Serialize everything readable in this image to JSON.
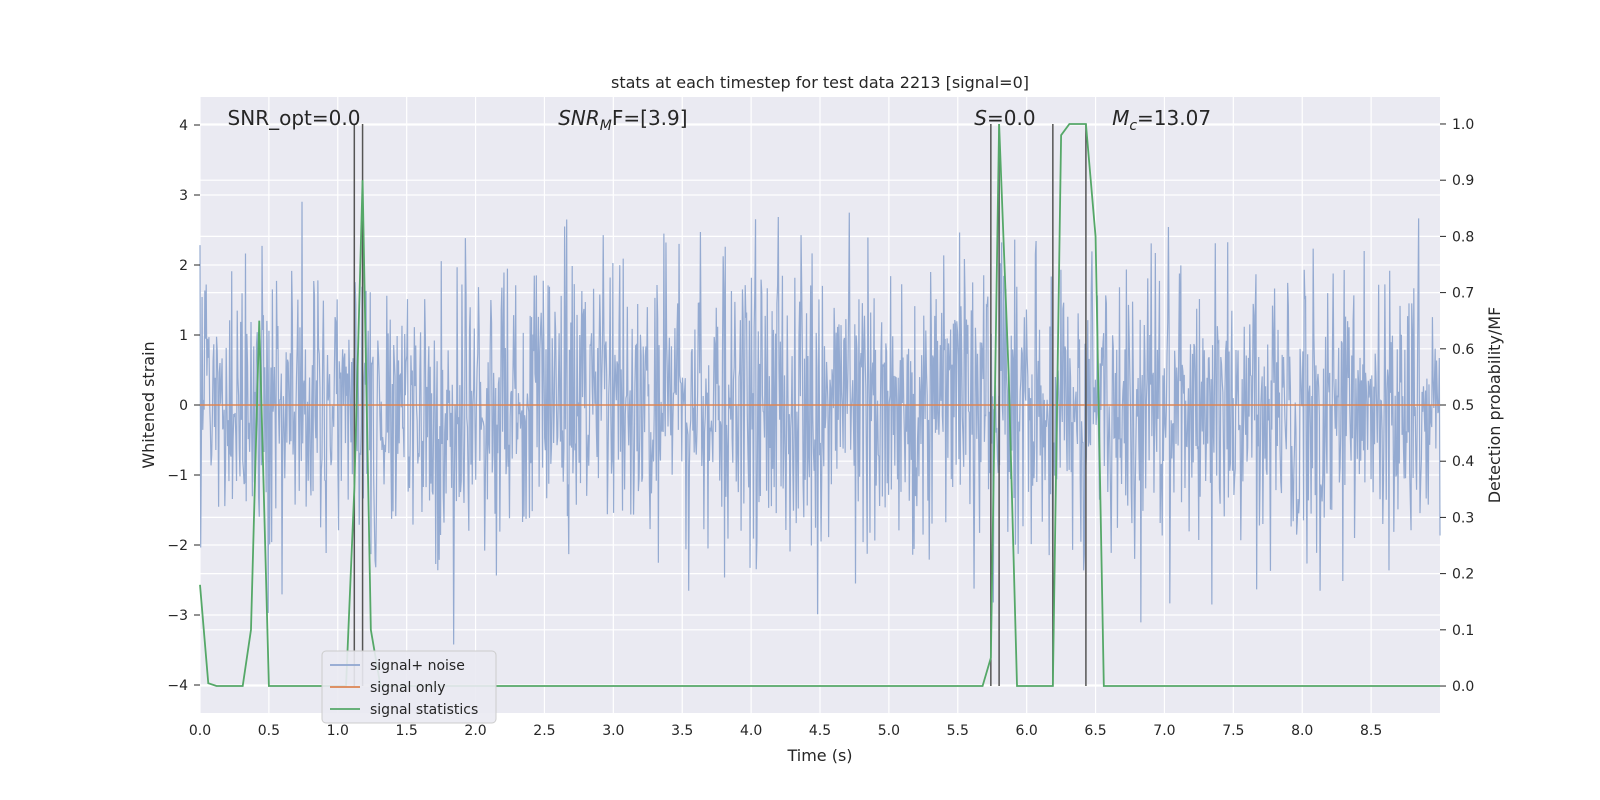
{
  "chart_data": {
    "type": "line",
    "title": "stats at each timestep for test data 2213 [signal=0]",
    "xlabel": "Time (s)",
    "ylabel_left": "Whitened strain",
    "ylabel_right": "Detection probability/MF",
    "xlim": [
      0.0,
      9.0
    ],
    "ylim_left": [
      -4.4,
      4.4
    ],
    "ylim_right": [
      -0.048,
      1.048
    ],
    "x_ticks": [
      "0.0",
      "0.5",
      "1.0",
      "1.5",
      "2.0",
      "2.5",
      "3.0",
      "3.5",
      "4.0",
      "4.5",
      "5.0",
      "5.5",
      "6.0",
      "6.5",
      "7.0",
      "7.5",
      "8.0",
      "8.5"
    ],
    "y_ticks_left": [
      "4",
      "3",
      "2",
      "1",
      "0",
      "−1",
      "−2",
      "−3",
      "−4"
    ],
    "y_ticks_right": [
      "1.0",
      "0.9",
      "0.8",
      "0.7",
      "0.6",
      "0.5",
      "0.4",
      "0.3",
      "0.2",
      "0.1",
      "0.0"
    ],
    "grid": true,
    "legend_position": "lower-left",
    "annotations": [
      {
        "text": "SNR_opt=0.0",
        "x": 0.2
      },
      {
        "text": "SNR",
        "sub": "M",
        "tail": "F=[3.9]",
        "x": 2.6
      },
      {
        "text": "S",
        "tail": "=0.0",
        "x": 5.62
      },
      {
        "text": "M",
        "sub": "c",
        "tail": "=13.07",
        "x": 6.62
      }
    ],
    "vlines": [
      1.12,
      1.18,
      5.74,
      5.8,
      6.19,
      6.43
    ],
    "series": [
      {
        "name": "signal+ noise",
        "color": "#8fa6cf",
        "axis": "left",
        "kind": "noise",
        "n_samples": 1800,
        "envelope_max": 3.9,
        "envelope_min": -3.6,
        "x_range": [
          0.0,
          9.0
        ]
      },
      {
        "name": "signal only",
        "color": "#dd8452",
        "axis": "left",
        "x": [
          0.0,
          9.0
        ],
        "y": [
          0.0,
          0.0
        ]
      },
      {
        "name": "signal statistics",
        "color": "#55a868",
        "axis": "right",
        "x": [
          0.0,
          0.06,
          0.12,
          0.31,
          0.37,
          0.43,
          0.5,
          1.06,
          1.12,
          1.18,
          1.24,
          1.31,
          5.68,
          5.74,
          5.8,
          5.87,
          5.93,
          6.19,
          6.25,
          6.31,
          6.37,
          6.43,
          6.5,
          6.56,
          9.0
        ],
        "y": [
          0.18,
          0.005,
          0.0,
          0.0,
          0.1,
          0.65,
          0.0,
          0.0,
          0.35,
          0.9,
          0.1,
          0.0,
          0.0,
          0.05,
          1.0,
          0.55,
          0.0,
          0.0,
          0.98,
          1.0,
          1.0,
          1.0,
          0.8,
          0.0,
          0.0
        ]
      }
    ]
  }
}
